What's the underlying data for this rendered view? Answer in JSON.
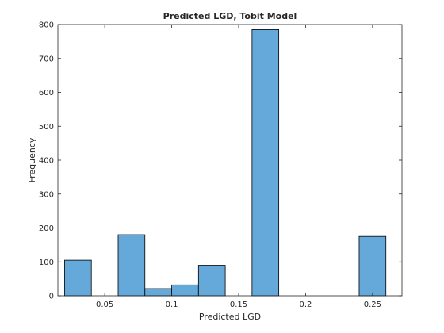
{
  "chart_data": {
    "type": "bar",
    "title": "Predicted LGD, Tobit Model",
    "xlabel": "Predicted LGD",
    "ylabel": "Frequency",
    "xlim": [
      0.015,
      0.272
    ],
    "ylim": [
      0,
      800
    ],
    "xticks": [
      0.05,
      0.1,
      0.15,
      0.2,
      0.25
    ],
    "xtick_labels": [
      "0.05",
      "0.1",
      "0.15",
      "0.2",
      "0.25"
    ],
    "yticks": [
      0,
      100,
      200,
      300,
      400,
      500,
      600,
      700,
      800
    ],
    "ytick_labels": [
      "0",
      "100",
      "200",
      "300",
      "400",
      "500",
      "600",
      "700",
      "800"
    ],
    "bin_edges": [
      0.02,
      0.04,
      0.06,
      0.08,
      0.1,
      0.12,
      0.14,
      0.16,
      0.18,
      0.2,
      0.22,
      0.24,
      0.26
    ],
    "values": [
      105,
      0,
      180,
      21,
      32,
      90,
      0,
      785,
      0,
      0,
      0,
      175
    ],
    "grid": false,
    "colors": {
      "bar_fill": "#64a9da",
      "bar_edge": "#000000",
      "axis": "#262626"
    }
  }
}
